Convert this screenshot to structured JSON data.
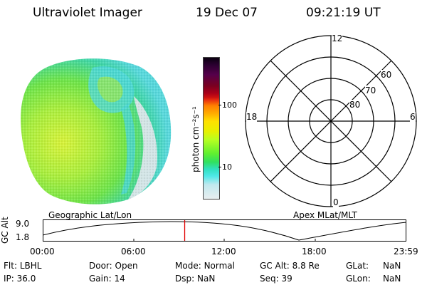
{
  "header": {
    "instrument": "Ultraviolet Imager",
    "date": "19 Dec 07",
    "time": "09:21:19 UT"
  },
  "colorbar": {
    "unit_label": "photon cm⁻²s⁻¹",
    "ticks": [
      "100",
      "10"
    ],
    "colors": [
      "#0a0010",
      "#2a0030",
      "#55004a",
      "#7a0020",
      "#a8001a",
      "#cc1010",
      "#e83010",
      "#ff8000",
      "#ffb000",
      "#ffe000",
      "#e8f000",
      "#b8ff20",
      "#60f030",
      "#30e060",
      "#30e0c0",
      "#50e8e8",
      "#c0e8ee",
      "#e8eef0"
    ]
  },
  "polar": {
    "mlt_labels": {
      "top": "12",
      "left": "18",
      "right": "6",
      "bottom": "0"
    },
    "lat_labels": [
      "60",
      "70",
      "80"
    ]
  },
  "labels": {
    "geographic": "Geographic Lat/Lon",
    "apex": "Apex MLat/MLT"
  },
  "altitude_plot": {
    "axis_label": "GC Alt",
    "y_max": "9.0",
    "y_min": "1.8",
    "time_ticks": [
      "00:00",
      "06:00",
      "12:00",
      "18:00",
      "23:59"
    ],
    "current_time_fraction": 0.39
  },
  "info": {
    "flt_label": "Flt:",
    "flt_value": "LBHL",
    "ip_label": "IP:",
    "ip_value": "36.0",
    "door_label": "Door:",
    "door_value": "Open",
    "gain_label": "Gain:",
    "gain_value": "14",
    "mode_label": "Mode:",
    "mode_value": "Normal",
    "dsp_label": "Dsp:",
    "dsp_value": "NaN",
    "gcalt_label": "GC Alt:",
    "gcalt_value": "8.8 Re",
    "seq_label": "Seq:",
    "seq_value": "39",
    "glat_label": "GLat:",
    "glat_value": "NaN",
    "glon_label": "GLon:",
    "glon_value": "NaN"
  }
}
